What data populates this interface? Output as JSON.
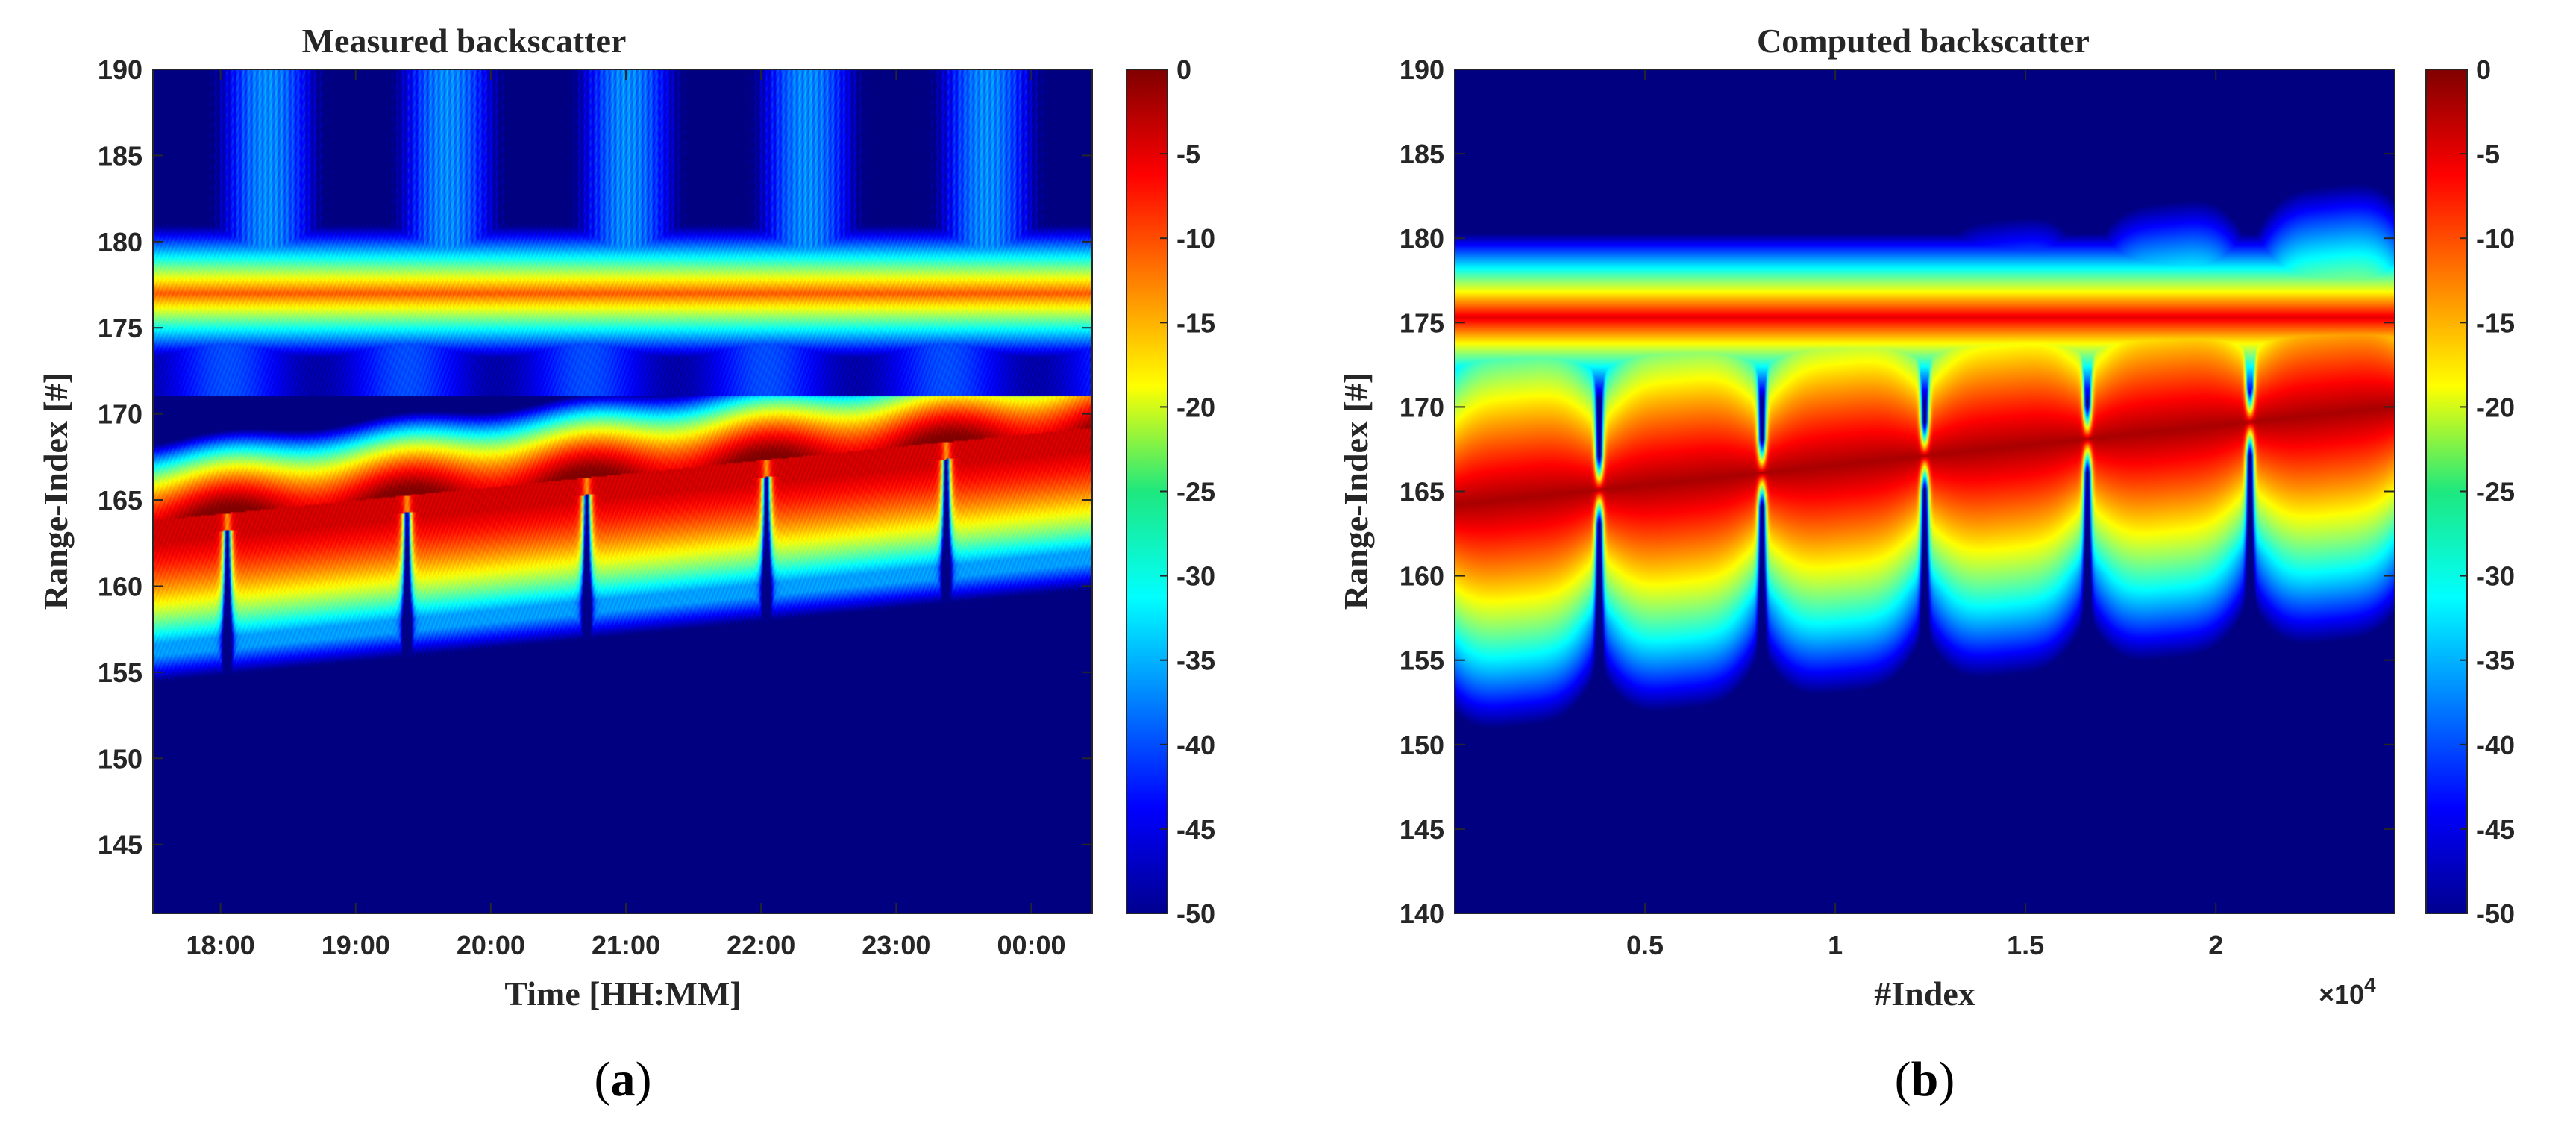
{
  "chart_data": [
    {
      "type": "heatmap",
      "panel_label": "a",
      "title": "Measured backscatter",
      "xlabel": "Time [HH:MM]",
      "ylabel": "Range-Index [#]",
      "x_ticks": [
        "18:00",
        "19:00",
        "20:00",
        "21:00",
        "22:00",
        "23:00",
        "00:00"
      ],
      "xlim_hours": [
        17.5,
        24.45
      ],
      "x_tick_values_hours": [
        18,
        19,
        20,
        21,
        22,
        23,
        24
      ],
      "ylim": [
        141,
        190
      ],
      "y_ticks": [
        145,
        150,
        155,
        160,
        165,
        170,
        175,
        180,
        185,
        190
      ],
      "colorbar": {
        "min": -50,
        "max": 0,
        "ticks": [
          0,
          -5,
          -10,
          -15,
          -20,
          -25,
          -30,
          -35,
          -40,
          -45,
          -50
        ],
        "colormap": "jet"
      },
      "features": {
        "main_echo_start": 163.8,
        "main_echo_end": 169.2,
        "static_echo_range": 177,
        "pattern_period_hours": 1.33,
        "first_null_hours": 18.05
      }
    },
    {
      "type": "heatmap",
      "panel_label": "b",
      "title": "Computed backscatter",
      "xlabel": "#Index",
      "x_exponent_label": "×10",
      "x_exponent_value": "4",
      "ylabel": "Range-Index [#]",
      "x_ticks": [
        "0.5",
        "1",
        "1.5",
        "2"
      ],
      "x_tick_values": [
        5000,
        10000,
        15000,
        20000
      ],
      "xlim": [
        0,
        24700
      ],
      "ylim": [
        140,
        190
      ],
      "y_ticks": [
        140,
        145,
        150,
        155,
        160,
        165,
        170,
        175,
        180,
        185,
        190
      ],
      "colorbar": {
        "min": -50,
        "max": 0,
        "ticks": [
          0,
          -5,
          -10,
          -15,
          -20,
          -25,
          -30,
          -35,
          -40,
          -45,
          -50
        ],
        "colormap": "jet"
      },
      "features": {
        "main_echo_start": 164.2,
        "main_echo_end": 170,
        "static_echo_range": 175.3,
        "null_positions": [
          3800,
          8050,
          12350,
          16600,
          20900
        ]
      }
    }
  ],
  "captions": {
    "a": "a",
    "b": "b"
  }
}
